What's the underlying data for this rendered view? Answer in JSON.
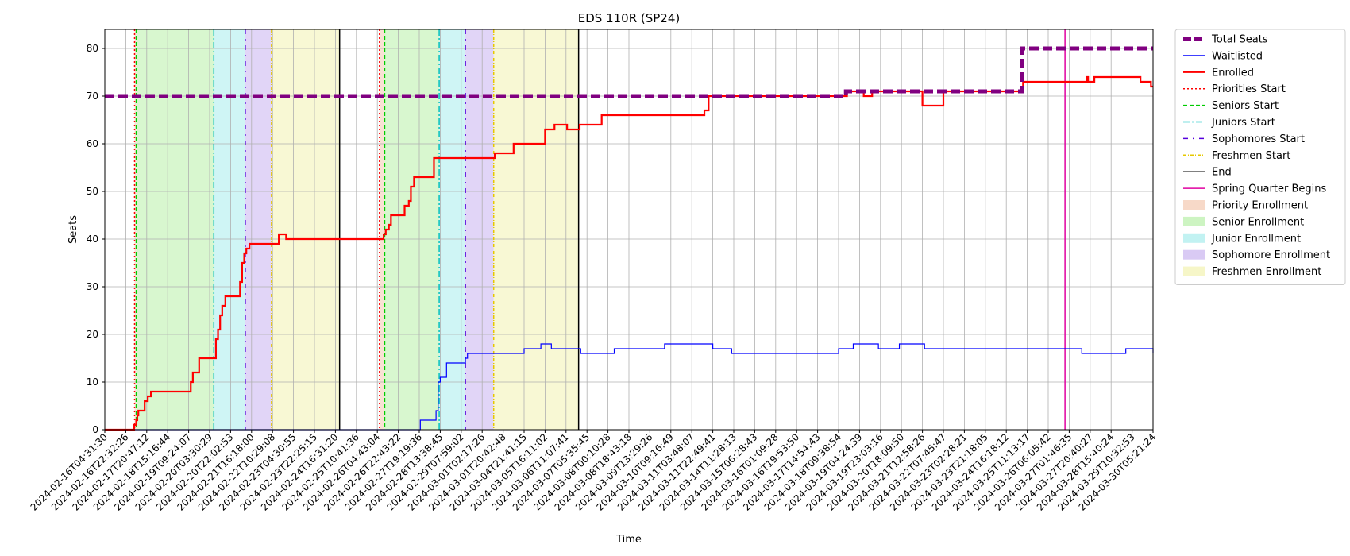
{
  "chart_data": {
    "type": "line",
    "title": "EDS 110R (SP24)",
    "xlabel": "Time",
    "ylabel": "Seats",
    "ylim": [
      0,
      84
    ],
    "yticks": [
      0,
      10,
      20,
      30,
      40,
      50,
      60,
      70,
      80
    ],
    "grid": true,
    "legend_position": "outside-right",
    "x_tick_labels": [
      "2024-02-16T04:31:30",
      "2024-02-16T22:32:26",
      "2024-02-17T20:47:12",
      "2024-02-18T15:16:44",
      "2024-02-19T09:24:07",
      "2024-02-20T03:30:29",
      "2024-02-20T22:02:53",
      "2024-02-21T16:18:00",
      "2024-02-22T10:29:08",
      "2024-02-23T04:30:55",
      "2024-02-23T22:25:15",
      "2024-02-24T16:31:20",
      "2024-02-25T10:41:36",
      "2024-02-26T04:43:04",
      "2024-02-26T22:43:22",
      "2024-02-27T19:19:36",
      "2024-02-28T13:38:45",
      "2024-02-29T07:59:02",
      "2024-03-01T02:17:26",
      "2024-03-01T20:42:48",
      "2024-03-04T21:41:15",
      "2024-03-05T16:11:02",
      "2024-03-06T11:07:41",
      "2024-03-07T05:35:45",
      "2024-03-08T00:10:28",
      "2024-03-08T18:43:18",
      "2024-03-09T13:29:26",
      "2024-03-10T09:16:49",
      "2024-03-11T03:48:07",
      "2024-03-11T22:49:41",
      "2024-03-14T11:28:13",
      "2024-03-15T06:28:43",
      "2024-03-16T01:09:28",
      "2024-03-16T19:53:50",
      "2024-03-17T14:54:43",
      "2024-03-18T09:38:54",
      "2024-03-19T04:24:39",
      "2024-03-19T23:03:16",
      "2024-03-20T18:09:50",
      "2024-03-21T12:58:26",
      "2024-03-22T07:45:47",
      "2024-03-23T02:28:21",
      "2024-03-23T21:18:05",
      "2024-03-24T16:18:12",
      "2024-03-25T11:13:17",
      "2024-03-26T06:05:42",
      "2024-03-27T01:46:35",
      "2024-03-27T20:40:27",
      "2024-03-28T15:40:24",
      "2024-03-29T10:32:53",
      "2024-03-30T05:21:24"
    ],
    "x_index_max": 50,
    "colors": {
      "total": "#800080",
      "waitlist": "#0000ff",
      "enrolled": "#ff0000",
      "priority_line": "#ff0000",
      "senior_line": "#00cc00",
      "junior_line": "#00bfbf",
      "sophomore_line": "#5500dd",
      "freshmen_line": "#e6c800",
      "end_line": "#000000",
      "spring_line": "#e000a0",
      "priority_fill": "#f4c9b0",
      "senior_fill": "#b8f0a8",
      "junior_fill": "#a8ecec",
      "sophomore_fill": "#c9b3f0",
      "freshmen_fill": "#f2f2b0"
    },
    "regions": [
      {
        "type": "priority",
        "start": 1.42,
        "end": 1.5
      },
      {
        "type": "senior",
        "start": 1.5,
        "end": 5.2
      },
      {
        "type": "junior",
        "start": 5.2,
        "end": 6.7
      },
      {
        "type": "sophomore",
        "start": 6.7,
        "end": 7.95
      },
      {
        "type": "freshmen",
        "start": 7.95,
        "end": 11.2
      },
      {
        "type": "priority",
        "start": 13.1,
        "end": 13.35
      },
      {
        "type": "senior",
        "start": 13.35,
        "end": 15.95
      },
      {
        "type": "junior",
        "start": 15.95,
        "end": 17.2
      },
      {
        "type": "sophomore",
        "start": 17.2,
        "end": 18.55
      },
      {
        "type": "freshmen",
        "start": 18.55,
        "end": 22.6
      }
    ],
    "vlines": [
      {
        "type": "priority",
        "x": 1.42
      },
      {
        "type": "senior",
        "x": 1.5
      },
      {
        "type": "junior",
        "x": 5.2
      },
      {
        "type": "sophomore",
        "x": 6.7
      },
      {
        "type": "freshmen",
        "x": 7.95
      },
      {
        "type": "end",
        "x": 11.2
      },
      {
        "type": "priority",
        "x": 13.1
      },
      {
        "type": "senior",
        "x": 13.35
      },
      {
        "type": "junior",
        "x": 15.95
      },
      {
        "type": "sophomore",
        "x": 17.2
      },
      {
        "type": "freshmen",
        "x": 18.55
      },
      {
        "type": "end",
        "x": 22.6
      },
      {
        "type": "spring",
        "x": 45.8
      }
    ],
    "series": [
      {
        "key": "total",
        "name": "Total Seats",
        "points": [
          [
            0,
            70
          ],
          [
            35.3,
            70
          ],
          [
            35.35,
            71
          ],
          [
            43.7,
            71
          ],
          [
            43.75,
            80
          ],
          [
            50,
            80
          ]
        ]
      },
      {
        "key": "waitlist",
        "name": "Waitlisted",
        "points": [
          [
            0,
            0
          ],
          [
            15.0,
            0
          ],
          [
            15.05,
            2
          ],
          [
            15.7,
            2
          ],
          [
            15.8,
            4
          ],
          [
            15.9,
            10
          ],
          [
            16.0,
            11
          ],
          [
            16.2,
            11
          ],
          [
            16.3,
            14
          ],
          [
            17.1,
            14
          ],
          [
            17.2,
            15
          ],
          [
            17.3,
            16
          ],
          [
            19.9,
            16
          ],
          [
            20.0,
            17
          ],
          [
            20.7,
            17
          ],
          [
            20.8,
            18
          ],
          [
            21.2,
            18
          ],
          [
            21.3,
            17
          ],
          [
            22.6,
            17
          ],
          [
            22.7,
            16
          ],
          [
            24.2,
            16
          ],
          [
            24.3,
            17
          ],
          [
            26.6,
            17
          ],
          [
            26.7,
            18
          ],
          [
            28.9,
            18
          ],
          [
            29.0,
            17
          ],
          [
            29.8,
            17
          ],
          [
            29.9,
            16
          ],
          [
            34.9,
            16
          ],
          [
            35.0,
            17
          ],
          [
            35.6,
            17
          ],
          [
            35.7,
            18
          ],
          [
            36.8,
            18
          ],
          [
            36.9,
            17
          ],
          [
            37.8,
            17
          ],
          [
            37.9,
            18
          ],
          [
            39.0,
            18
          ],
          [
            39.1,
            17
          ],
          [
            46.5,
            17
          ],
          [
            46.6,
            16
          ],
          [
            48.6,
            16
          ],
          [
            48.7,
            17
          ],
          [
            49.9,
            17
          ],
          [
            50,
            16
          ]
        ]
      },
      {
        "key": "enrolled",
        "name": "Enrolled",
        "points": [
          [
            0,
            0
          ],
          [
            1.35,
            0
          ],
          [
            1.4,
            1
          ],
          [
            1.5,
            2
          ],
          [
            1.55,
            3
          ],
          [
            1.6,
            4
          ],
          [
            1.85,
            4
          ],
          [
            1.9,
            6
          ],
          [
            2.0,
            6
          ],
          [
            2.05,
            7
          ],
          [
            2.15,
            7
          ],
          [
            2.2,
            8
          ],
          [
            4.0,
            8
          ],
          [
            4.1,
            10
          ],
          [
            4.2,
            12
          ],
          [
            4.35,
            12
          ],
          [
            4.5,
            15
          ],
          [
            5.2,
            15
          ],
          [
            5.3,
            19
          ],
          [
            5.4,
            21
          ],
          [
            5.5,
            24
          ],
          [
            5.6,
            26
          ],
          [
            5.75,
            28
          ],
          [
            6.3,
            28
          ],
          [
            6.45,
            31
          ],
          [
            6.55,
            35
          ],
          [
            6.65,
            37
          ],
          [
            6.75,
            38
          ],
          [
            6.9,
            39
          ],
          [
            8.2,
            39
          ],
          [
            8.3,
            41
          ],
          [
            8.6,
            41
          ],
          [
            8.65,
            40
          ],
          [
            13.2,
            40
          ],
          [
            13.3,
            41
          ],
          [
            13.4,
            42
          ],
          [
            13.55,
            43
          ],
          [
            13.65,
            45
          ],
          [
            14.2,
            45
          ],
          [
            14.3,
            47
          ],
          [
            14.5,
            48
          ],
          [
            14.6,
            51
          ],
          [
            14.75,
            53
          ],
          [
            15.6,
            53
          ],
          [
            15.7,
            57
          ],
          [
            18.55,
            57
          ],
          [
            18.6,
            58
          ],
          [
            19.4,
            58
          ],
          [
            19.5,
            60
          ],
          [
            20.9,
            60
          ],
          [
            21.0,
            63
          ],
          [
            21.4,
            63
          ],
          [
            21.45,
            64
          ],
          [
            22.0,
            64
          ],
          [
            22.05,
            63
          ],
          [
            22.6,
            63
          ],
          [
            22.65,
            64
          ],
          [
            23.6,
            64
          ],
          [
            23.7,
            66
          ],
          [
            28.5,
            66
          ],
          [
            28.6,
            67
          ],
          [
            28.7,
            67
          ],
          [
            28.8,
            70
          ],
          [
            34.5,
            70
          ],
          [
            35.3,
            70
          ],
          [
            35.4,
            71
          ],
          [
            36.1,
            71
          ],
          [
            36.2,
            70
          ],
          [
            36.5,
            70
          ],
          [
            36.6,
            71
          ],
          [
            38.9,
            71
          ],
          [
            39.0,
            68
          ],
          [
            39.9,
            68
          ],
          [
            40.0,
            71
          ],
          [
            43.7,
            71
          ],
          [
            43.8,
            73
          ],
          [
            46.8,
            73
          ],
          [
            46.85,
            74
          ],
          [
            46.9,
            73
          ],
          [
            47.1,
            73
          ],
          [
            47.2,
            74
          ],
          [
            49.3,
            74
          ],
          [
            49.4,
            73
          ],
          [
            49.8,
            73
          ],
          [
            49.9,
            72
          ],
          [
            50,
            72
          ]
        ]
      }
    ],
    "legend": [
      {
        "kind": "line",
        "color": "#800080",
        "dash": "10,4",
        "width": 5,
        "label": "Total Seats"
      },
      {
        "kind": "line",
        "color": "#0000ff",
        "dash": "",
        "width": 1.2,
        "label": "Waitlisted"
      },
      {
        "kind": "line",
        "color": "#ff0000",
        "dash": "",
        "width": 2.2,
        "label": "Enrolled"
      },
      {
        "kind": "line",
        "color": "#ff0000",
        "dash": "2,3",
        "width": 1.5,
        "label": "Priorities Start"
      },
      {
        "kind": "line",
        "color": "#00cc00",
        "dash": "5,3",
        "width": 1.5,
        "label": "Seniors Start"
      },
      {
        "kind": "line",
        "color": "#00bfbf",
        "dash": "8,3,2,3",
        "width": 1.5,
        "label": "Juniors Start"
      },
      {
        "kind": "line",
        "color": "#5500dd",
        "dash": "6,6,2,6",
        "width": 1.5,
        "label": "Sophomores Start"
      },
      {
        "kind": "line",
        "color": "#e6c800",
        "dash": "4,2,1,2",
        "width": 1.5,
        "label": "Freshmen Start"
      },
      {
        "kind": "line",
        "color": "#000000",
        "dash": "",
        "width": 1.5,
        "label": "End"
      },
      {
        "kind": "line",
        "color": "#e000a0",
        "dash": "",
        "width": 1.5,
        "label": "Spring Quarter Begins"
      },
      {
        "kind": "patch",
        "color": "#f4c9b0",
        "label": "Priority Enrollment"
      },
      {
        "kind": "patch",
        "color": "#b8f0a8",
        "label": "Senior Enrollment"
      },
      {
        "kind": "patch",
        "color": "#a8ecec",
        "label": "Junior Enrollment"
      },
      {
        "kind": "patch",
        "color": "#c9b3f0",
        "label": "Sophomore Enrollment"
      },
      {
        "kind": "patch",
        "color": "#f2f2b0",
        "label": "Freshmen Enrollment"
      }
    ]
  }
}
